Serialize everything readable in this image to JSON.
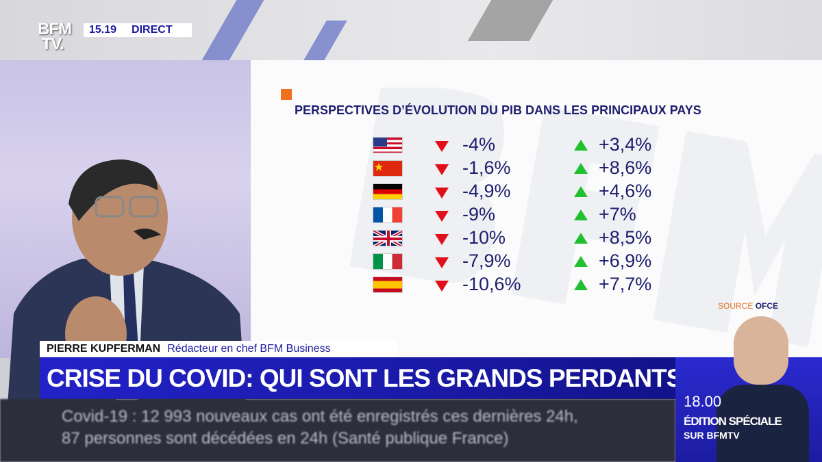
{
  "channel": {
    "logo": "BFM TV.",
    "time": "15.19",
    "live": "DIRECT"
  },
  "graphic": {
    "title": "PERSPECTIVES D’ÉVOLUTION DU PIB DANS LES PRINCIPAUX PAYS",
    "rows": [
      {
        "country": "usa",
        "drop": "-4%",
        "rebound": "+3,4%"
      },
      {
        "country": "china",
        "drop": "-1,6%",
        "rebound": "+8,6%"
      },
      {
        "country": "germany",
        "drop": "-4,9%",
        "rebound": "+4,6%"
      },
      {
        "country": "france",
        "drop": "-9%",
        "rebound": "+7%"
      },
      {
        "country": "uk",
        "drop": "-10%",
        "rebound": "+8,5%"
      },
      {
        "country": "italy",
        "drop": "-7,9%",
        "rebound": "+6,9%"
      },
      {
        "country": "spain",
        "drop": "-10,6%",
        "rebound": "+7,7%"
      }
    ],
    "source_label": "SOURCE",
    "source": "OFCE"
  },
  "lower_third": {
    "name": "PIERRE KUPFERMAN",
    "role": "Rédacteur en chef BFM Business",
    "headline": "CRISE DU COVID: QUI SONT LES GRANDS PERDANTS ?"
  },
  "ticker": {
    "line1": "Covid-19 : 12 993 nouveaux cas ont été enregistrés ces dernières 24h,",
    "line2": "87 personnes sont décédées en 24h (Santé publique France)"
  },
  "promo": {
    "time": "18.00",
    "title": "ÉDITION SPÉCIALE",
    "channel": "SUR BFMTV"
  }
}
